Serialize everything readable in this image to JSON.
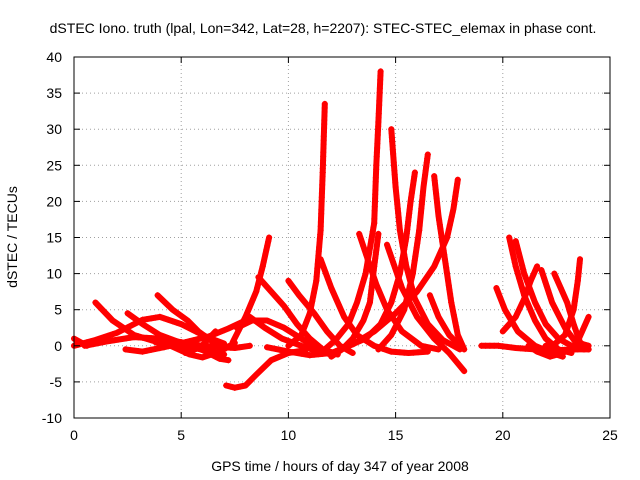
{
  "chart_data": {
    "type": "scatter",
    "title": "dSTEC Iono. truth (lpal, Lon=342, Lat=28, h=2207): STEC-STEC_elemax in phase cont.",
    "xlabel": "GPS time / hours of day 347 of year 2008",
    "ylabel": "dSTEC  / TECUs",
    "xlim": [
      0,
      25
    ],
    "ylim": [
      -10,
      40
    ],
    "xticks": [
      "0",
      "5",
      "10",
      "15",
      "20",
      "25"
    ],
    "yticks": [
      "-10",
      "-5",
      "0",
      "5",
      "10",
      "15",
      "20",
      "25",
      "30",
      "35",
      "40"
    ],
    "grid": true,
    "legend": "none",
    "color": "#ff0000",
    "marker": "plus",
    "arcs": [
      [
        [
          0.0,
          1.0
        ],
        [
          0.6,
          0.0
        ]
      ],
      [
        [
          0.0,
          0.0
        ],
        [
          1.0,
          0.8
        ],
        [
          2.0,
          1.8
        ],
        [
          3.2,
          3.6
        ],
        [
          4.0,
          4.0
        ],
        [
          5.0,
          3.0
        ],
        [
          6.2,
          1.2
        ],
        [
          7.0,
          0.3
        ]
      ],
      [
        [
          0.5,
          0.0
        ],
        [
          1.5,
          0.6
        ],
        [
          2.8,
          1.2
        ],
        [
          4.0,
          1.0
        ],
        [
          5.0,
          0.5
        ],
        [
          6.0,
          0.0
        ],
        [
          7.5,
          -0.3
        ],
        [
          8.2,
          0.0
        ]
      ],
      [
        [
          1.0,
          6.0
        ],
        [
          1.8,
          3.5
        ],
        [
          2.8,
          1.5
        ],
        [
          3.8,
          0.6
        ],
        [
          5.0,
          0.0
        ],
        [
          6.0,
          -0.5
        ],
        [
          7.0,
          -1.2
        ]
      ],
      [
        [
          2.5,
          4.5
        ],
        [
          3.2,
          3.0
        ],
        [
          4.0,
          1.5
        ],
        [
          5.0,
          0.4
        ],
        [
          6.0,
          -0.6
        ],
        [
          6.8,
          -1.8
        ],
        [
          7.2,
          -2.0
        ]
      ],
      [
        [
          2.4,
          -0.5
        ],
        [
          3.2,
          -0.8
        ],
        [
          4.2,
          -0.2
        ],
        [
          5.2,
          0.5
        ],
        [
          6.3,
          1.3
        ],
        [
          7.2,
          2.4
        ],
        [
          8.0,
          3.5
        ]
      ],
      [
        [
          3.9,
          7.0
        ],
        [
          4.6,
          5.0
        ],
        [
          5.3,
          3.5
        ],
        [
          5.8,
          2.0
        ],
        [
          6.5,
          0.5
        ],
        [
          7.2,
          -0.2
        ]
      ],
      [
        [
          3.8,
          0.5
        ],
        [
          4.5,
          0.0
        ],
        [
          5.4,
          -1.2
        ],
        [
          6.0,
          -1.6
        ],
        [
          6.8,
          -0.8
        ],
        [
          7.5,
          0.4
        ]
      ],
      [
        [
          5.2,
          -1.0
        ],
        [
          5.9,
          -0.2
        ],
        [
          6.6,
          2.0
        ]
      ],
      [
        [
          7.1,
          -5.5
        ],
        [
          7.5,
          -5.8
        ],
        [
          8.0,
          -5.5
        ],
        [
          8.5,
          -4.0
        ],
        [
          9.2,
          -2.0
        ],
        [
          10.0,
          -1.0
        ],
        [
          10.8,
          -0.6
        ]
      ],
      [
        [
          7.4,
          0.5
        ],
        [
          8.0,
          4.0
        ],
        [
          8.5,
          7.5
        ],
        [
          8.8,
          11.0
        ],
        [
          9.1,
          15.0
        ]
      ],
      [
        [
          7.6,
          2.5
        ],
        [
          8.3,
          3.5
        ],
        [
          9.0,
          3.5
        ],
        [
          9.8,
          2.5
        ],
        [
          10.6,
          1.0
        ],
        [
          11.4,
          -0.5
        ],
        [
          12.2,
          -1.0
        ]
      ],
      [
        [
          8.6,
          9.5
        ],
        [
          9.2,
          7.5
        ],
        [
          9.8,
          5.5
        ],
        [
          10.4,
          3.0
        ],
        [
          11.0,
          1.0
        ],
        [
          11.6,
          -0.5
        ],
        [
          12.3,
          -1.2
        ]
      ],
      [
        [
          8.2,
          4.0
        ],
        [
          8.9,
          2.5
        ],
        [
          9.7,
          1.0
        ],
        [
          10.6,
          0.0
        ],
        [
          11.4,
          -0.8
        ],
        [
          12.0,
          -1.2
        ]
      ],
      [
        [
          10.0,
          0.0
        ],
        [
          10.6,
          1.5
        ],
        [
          11.0,
          4.5
        ],
        [
          11.3,
          9.0
        ],
        [
          11.5,
          16.0
        ],
        [
          11.6,
          24.0
        ],
        [
          11.7,
          33.5
        ]
      ],
      [
        [
          10.0,
          9.0
        ],
        [
          10.5,
          7.0
        ],
        [
          11.2,
          4.5
        ],
        [
          11.8,
          2.0
        ],
        [
          12.4,
          0.0
        ],
        [
          13.0,
          -1.0
        ]
      ],
      [
        [
          9.0,
          -0.2
        ],
        [
          10.0,
          -0.8
        ],
        [
          11.0,
          -1.3
        ],
        [
          12.0,
          -1.0
        ],
        [
          13.0,
          0.2
        ],
        [
          14.0,
          2.0
        ],
        [
          15.0,
          4.5
        ],
        [
          16.0,
          7.5
        ],
        [
          16.8,
          11.0
        ],
        [
          17.4,
          15.0
        ],
        [
          17.7,
          19.0
        ],
        [
          17.9,
          23.0
        ]
      ],
      [
        [
          11.5,
          -1.0
        ],
        [
          12.2,
          0.8
        ],
        [
          12.8,
          3.0
        ],
        [
          13.2,
          6.0
        ],
        [
          13.6,
          10.0
        ],
        [
          14.0,
          17.0
        ],
        [
          14.1,
          25.0
        ],
        [
          14.2,
          31.0
        ],
        [
          14.3,
          38.0
        ]
      ],
      [
        [
          11.5,
          12.0
        ],
        [
          12.0,
          8.0
        ],
        [
          12.6,
          4.0
        ],
        [
          13.2,
          1.5
        ],
        [
          14.0,
          0.0
        ],
        [
          14.8,
          -0.8
        ],
        [
          15.6,
          -1.0
        ],
        [
          16.5,
          -0.8
        ]
      ],
      [
        [
          12.0,
          -1.5
        ],
        [
          12.5,
          -0.5
        ],
        [
          13.0,
          1.0
        ],
        [
          13.5,
          3.5
        ],
        [
          13.8,
          6.0
        ],
        [
          14.0,
          11.0
        ],
        [
          14.2,
          15.5
        ]
      ],
      [
        [
          12.8,
          0.0
        ],
        [
          13.6,
          1.0
        ],
        [
          14.3,
          3.0
        ],
        [
          14.8,
          6.0
        ],
        [
          15.2,
          10.0
        ],
        [
          15.5,
          15.0
        ],
        [
          15.7,
          20.0
        ],
        [
          15.9,
          24.0
        ]
      ],
      [
        [
          13.3,
          15.5
        ],
        [
          13.7,
          12.0
        ],
        [
          14.1,
          8.5
        ],
        [
          14.6,
          5.0
        ],
        [
          15.3,
          2.0
        ],
        [
          16.2,
          0.0
        ],
        [
          17.0,
          -0.5
        ]
      ],
      [
        [
          14.2,
          -0.5
        ],
        [
          14.8,
          1.5
        ],
        [
          15.4,
          5.0
        ],
        [
          15.8,
          10.0
        ],
        [
          16.1,
          16.0
        ],
        [
          16.3,
          22.0
        ],
        [
          16.5,
          26.5
        ]
      ],
      [
        [
          14.8,
          30.0
        ],
        [
          15.0,
          22.0
        ],
        [
          15.2,
          16.0
        ],
        [
          15.5,
          11.0
        ],
        [
          15.9,
          6.5
        ],
        [
          16.5,
          3.0
        ],
        [
          17.2,
          0.8
        ],
        [
          18.0,
          -0.5
        ]
      ],
      [
        [
          14.6,
          14.0
        ],
        [
          15.3,
          8.0
        ],
        [
          16.0,
          4.0
        ],
        [
          16.8,
          1.0
        ],
        [
          17.5,
          -1.0
        ],
        [
          18.2,
          -3.5
        ]
      ],
      [
        [
          16.6,
          7.0
        ],
        [
          17.0,
          4.0
        ],
        [
          17.5,
          1.5
        ],
        [
          18.0,
          0.0
        ]
      ],
      [
        [
          16.8,
          23.5
        ],
        [
          17.0,
          18.0
        ],
        [
          17.3,
          12.0
        ],
        [
          17.6,
          6.0
        ],
        [
          17.9,
          1.5
        ],
        [
          18.2,
          -0.5
        ]
      ],
      [
        [
          19.0,
          0.0
        ],
        [
          19.8,
          0.0
        ],
        [
          20.6,
          -0.3
        ],
        [
          21.5,
          -0.5
        ],
        [
          22.5,
          -0.6
        ],
        [
          23.5,
          -0.5
        ],
        [
          24.0,
          -0.5
        ]
      ],
      [
        [
          19.7,
          8.0
        ],
        [
          20.1,
          5.0
        ],
        [
          20.7,
          2.0
        ],
        [
          21.5,
          0.0
        ],
        [
          22.3,
          -1.0
        ],
        [
          22.8,
          -1.5
        ]
      ],
      [
        [
          20.0,
          2.0
        ],
        [
          20.6,
          4.0
        ],
        [
          21.0,
          6.5
        ],
        [
          21.3,
          9.0
        ],
        [
          21.6,
          11.0
        ]
      ],
      [
        [
          20.3,
          15.0
        ],
        [
          20.6,
          11.0
        ],
        [
          21.0,
          7.0
        ],
        [
          21.5,
          3.5
        ],
        [
          22.0,
          1.0
        ],
        [
          22.6,
          -0.5
        ],
        [
          23.2,
          -1.0
        ]
      ],
      [
        [
          20.6,
          14.5
        ],
        [
          21.0,
          10.0
        ],
        [
          21.5,
          6.0
        ],
        [
          22.0,
          3.0
        ],
        [
          22.6,
          1.0
        ],
        [
          23.2,
          0.0
        ],
        [
          23.8,
          -0.5
        ]
      ],
      [
        [
          21.2,
          0.0
        ],
        [
          21.6,
          -0.8
        ],
        [
          22.2,
          -1.5
        ],
        [
          22.8,
          -1.0
        ],
        [
          23.4,
          0.0
        ],
        [
          24.0,
          4.0
        ]
      ],
      [
        [
          22.0,
          0.0
        ],
        [
          22.4,
          0.2
        ],
        [
          22.9,
          1.5
        ],
        [
          23.3,
          5.0
        ],
        [
          23.5,
          9.0
        ],
        [
          23.6,
          12.0
        ]
      ],
      [
        [
          22.4,
          10.0
        ],
        [
          22.7,
          8.0
        ],
        [
          23.0,
          6.0
        ],
        [
          23.3,
          3.0
        ],
        [
          23.6,
          0.5
        ],
        [
          24.0,
          -0.5
        ]
      ],
      [
        [
          21.8,
          10.5
        ],
        [
          22.3,
          6.0
        ],
        [
          22.9,
          2.5
        ],
        [
          23.4,
          0.5
        ],
        [
          24.0,
          0.0
        ]
      ]
    ]
  }
}
